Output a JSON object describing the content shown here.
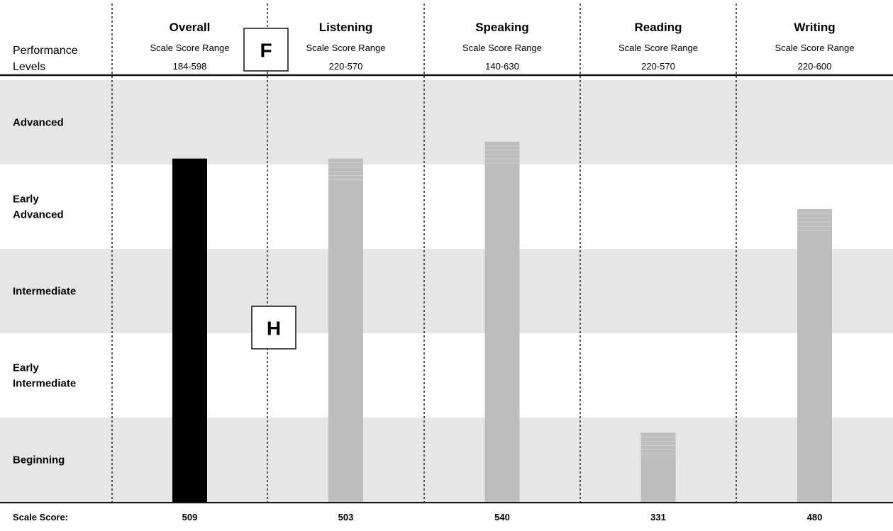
{
  "chart_data": {
    "type": "bar",
    "row_header": [
      "Performance",
      "Levels"
    ],
    "levels": [
      {
        "label": [
          "Advanced"
        ],
        "shaded": true
      },
      {
        "label": [
          "Early",
          "Advanced"
        ],
        "shaded": false
      },
      {
        "label": [
          "Intermediate"
        ],
        "shaded": true
      },
      {
        "label": [
          "Early",
          "Intermediate"
        ],
        "shaded": false
      },
      {
        "label": [
          "Beginning"
        ],
        "shaded": true
      }
    ],
    "categories": [
      {
        "name": "Overall",
        "sub": "Scale Score Range",
        "range": "184-598",
        "score": 509,
        "level_position": 4.07,
        "color": "#000000"
      },
      {
        "name": "Listening",
        "sub": "Scale Score Range",
        "range": "220-570",
        "score": 503,
        "level_position": 4.07,
        "color": "#bdbdbd"
      },
      {
        "name": "Speaking",
        "sub": "Scale Score Range",
        "range": "140-630",
        "score": 540,
        "level_position": 4.27,
        "color": "#bdbdbd"
      },
      {
        "name": "Reading",
        "sub": "Scale Score Range",
        "range": "220-570",
        "score": 331,
        "level_position": 0.82,
        "color": "#bdbdbd"
      },
      {
        "name": "Writing",
        "sub": "Scale Score Range",
        "range": "220-600",
        "score": 480,
        "level_position": 3.47,
        "color": "#bdbdbd"
      }
    ],
    "score_row_label": "Scale Score:",
    "annotations": [
      "F",
      "H"
    ]
  }
}
